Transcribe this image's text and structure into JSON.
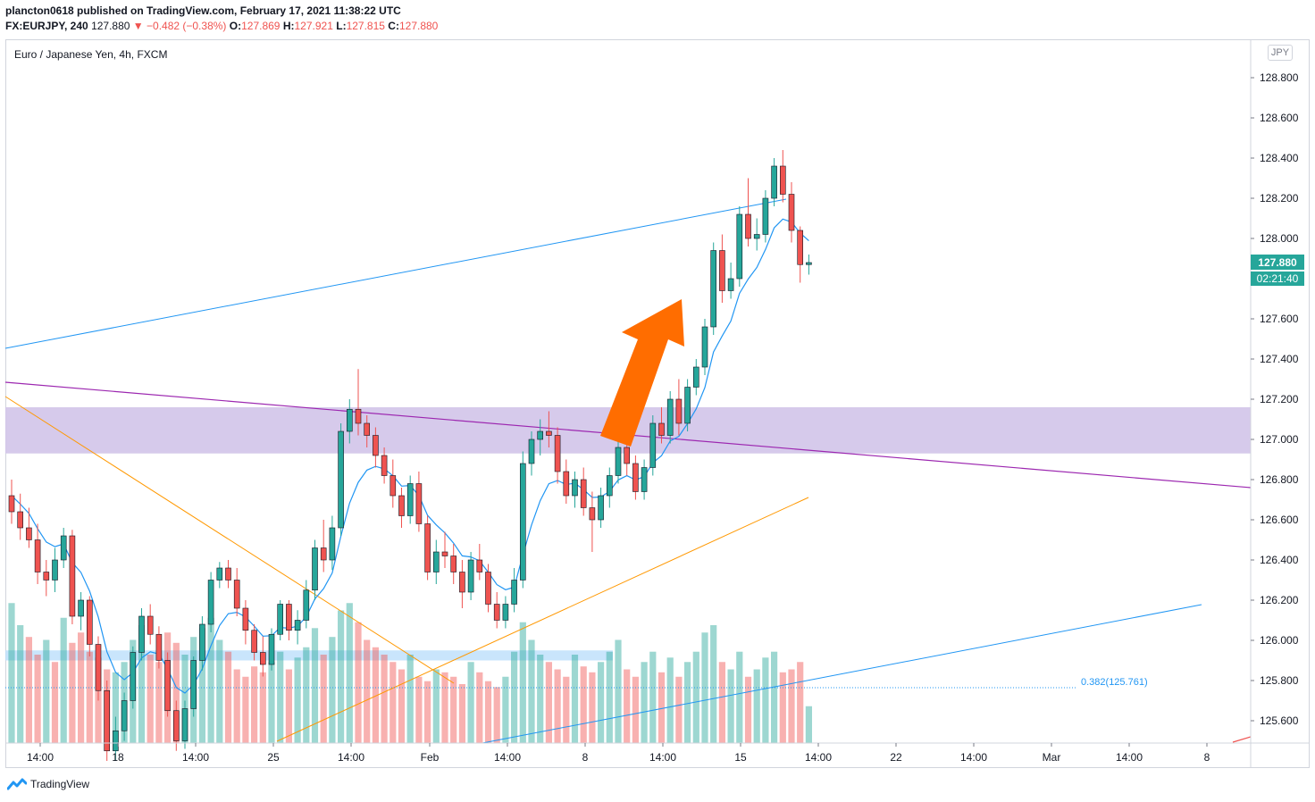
{
  "header": {
    "publisher_line": "plancton0618 published on TradingView.com, February 17, 2021 11:38:22 UTC",
    "symbol": "FX:EURJPY, 240",
    "last": "127.880",
    "change": "▼ −0.482 (−0.38%)",
    "o_label": "O:",
    "o": "127.869",
    "h_label": "H:",
    "h": "127.921",
    "l_label": "L:",
    "l": "127.815",
    "c_label": "C:",
    "c": "127.880"
  },
  "chart_title": "Euro / Japanese Yen, 4h, FXCM",
  "currency_button": "JPY",
  "footer": {
    "brand": "TradingView"
  },
  "colors": {
    "up": "#26a69a",
    "down": "#ef5350",
    "ema": "#2196f3",
    "zone": "#d1c4e9",
    "arrow": "#ff6d00"
  },
  "chart_data": {
    "type": "candlestick",
    "yaxis": {
      "ticks": [
        "125.600",
        "125.800",
        "126.000",
        "126.200",
        "126.400",
        "126.600",
        "126.800",
        "127.000",
        "127.200",
        "127.400",
        "127.600",
        "127.800",
        "128.000",
        "128.200",
        "128.400",
        "128.600",
        "128.800"
      ],
      "ylim": [
        125.47,
        128.99
      ]
    },
    "xaxis": {
      "ticks": [
        "14:00",
        "18",
        "14:00",
        "25",
        "14:00",
        "Feb",
        "14:00",
        "8",
        "14:00",
        "15",
        "14:00",
        "22",
        "14:00",
        "Mar",
        "14:00",
        "8"
      ]
    },
    "price_label": "127.880",
    "countdown": "02:21:40",
    "fib_label": "0.382(125.761)",
    "candles": [
      [
        126.72,
        126.8,
        126.58,
        126.64
      ],
      [
        126.64,
        126.73,
        126.5,
        126.56
      ],
      [
        126.56,
        126.66,
        126.46,
        126.5
      ],
      [
        126.5,
        126.58,
        126.28,
        126.34
      ],
      [
        126.34,
        126.4,
        126.22,
        126.3
      ],
      [
        126.3,
        126.46,
        126.24,
        126.4
      ],
      [
        126.4,
        126.56,
        126.36,
        126.52
      ],
      [
        126.52,
        126.55,
        126.08,
        126.12
      ],
      [
        126.12,
        126.24,
        126.05,
        126.2
      ],
      [
        126.2,
        126.22,
        125.92,
        125.98
      ],
      [
        125.98,
        126.02,
        125.7,
        125.75
      ],
      [
        125.75,
        125.8,
        125.4,
        125.45
      ],
      [
        125.45,
        125.62,
        125.4,
        125.55
      ],
      [
        125.55,
        125.74,
        125.5,
        125.7
      ],
      [
        125.7,
        125.97,
        125.66,
        125.94
      ],
      [
        125.94,
        126.16,
        125.9,
        126.12
      ],
      [
        126.12,
        126.18,
        125.98,
        126.03
      ],
      [
        126.03,
        126.07,
        125.86,
        125.9
      ],
      [
        125.9,
        125.94,
        125.62,
        125.65
      ],
      [
        125.65,
        125.7,
        125.45,
        125.5
      ],
      [
        125.5,
        125.7,
        125.46,
        125.66
      ],
      [
        125.66,
        125.92,
        125.62,
        125.9
      ],
      [
        125.9,
        126.12,
        125.85,
        126.08
      ],
      [
        126.08,
        126.34,
        126.04,
        126.3
      ],
      [
        126.3,
        126.39,
        126.26,
        126.36
      ],
      [
        126.36,
        126.4,
        126.26,
        126.3
      ],
      [
        126.3,
        126.36,
        126.12,
        126.16
      ],
      [
        126.16,
        126.2,
        125.98,
        126.05
      ],
      [
        126.05,
        126.08,
        125.9,
        125.94
      ],
      [
        125.94,
        126.02,
        125.82,
        125.88
      ],
      [
        125.88,
        126.06,
        125.85,
        126.03
      ],
      [
        126.03,
        126.2,
        126.0,
        126.18
      ],
      [
        126.18,
        126.2,
        126.0,
        126.05
      ],
      [
        126.05,
        126.15,
        125.98,
        126.1
      ],
      [
        126.1,
        126.3,
        126.06,
        126.25
      ],
      [
        126.25,
        126.5,
        126.2,
        126.46
      ],
      [
        126.46,
        126.6,
        126.34,
        126.4
      ],
      [
        126.4,
        126.62,
        126.35,
        126.56
      ],
      [
        126.56,
        127.08,
        126.52,
        127.04
      ],
      [
        127.04,
        127.2,
        126.98,
        127.15
      ],
      [
        127.15,
        127.35,
        127.02,
        127.08
      ],
      [
        127.08,
        127.12,
        126.96,
        127.02
      ],
      [
        127.02,
        127.06,
        126.86,
        126.92
      ],
      [
        126.92,
        126.96,
        126.78,
        126.82
      ],
      [
        126.82,
        126.9,
        126.66,
        126.72
      ],
      [
        126.72,
        126.76,
        126.56,
        126.62
      ],
      [
        126.62,
        126.82,
        126.58,
        126.78
      ],
      [
        126.78,
        126.84,
        126.54,
        126.58
      ],
      [
        126.58,
        126.62,
        126.3,
        126.34
      ],
      [
        126.34,
        126.5,
        126.28,
        126.44
      ],
      [
        126.44,
        126.54,
        126.36,
        126.42
      ],
      [
        126.42,
        126.48,
        126.28,
        126.34
      ],
      [
        126.34,
        126.4,
        126.16,
        126.24
      ],
      [
        126.24,
        126.44,
        126.2,
        126.4
      ],
      [
        126.4,
        126.48,
        126.3,
        126.34
      ],
      [
        126.34,
        126.38,
        126.14,
        126.18
      ],
      [
        126.18,
        126.24,
        126.06,
        126.1
      ],
      [
        126.1,
        126.22,
        126.06,
        126.18
      ],
      [
        126.18,
        126.36,
        126.14,
        126.3
      ],
      [
        126.3,
        126.94,
        126.26,
        126.88
      ],
      [
        126.88,
        127.04,
        126.82,
        127.0
      ],
      [
        127.0,
        127.1,
        126.92,
        127.04
      ],
      [
        127.04,
        127.14,
        126.96,
        127.02
      ],
      [
        127.02,
        127.06,
        126.78,
        126.84
      ],
      [
        126.84,
        126.9,
        126.68,
        126.72
      ],
      [
        126.72,
        126.84,
        126.66,
        126.8
      ],
      [
        126.8,
        126.86,
        126.62,
        126.66
      ],
      [
        126.66,
        126.74,
        126.44,
        126.6
      ],
      [
        126.6,
        126.76,
        126.56,
        126.72
      ],
      [
        126.72,
        126.86,
        126.66,
        126.82
      ],
      [
        126.82,
        127.0,
        126.78,
        126.96
      ],
      [
        126.96,
        127.06,
        126.82,
        126.88
      ],
      [
        126.88,
        126.92,
        126.7,
        126.74
      ],
      [
        126.74,
        126.9,
        126.7,
        126.86
      ],
      [
        126.86,
        127.12,
        126.82,
        127.08
      ],
      [
        127.08,
        127.16,
        126.98,
        127.02
      ],
      [
        127.02,
        127.24,
        126.98,
        127.2
      ],
      [
        127.2,
        127.3,
        127.02,
        127.08
      ],
      [
        127.08,
        127.3,
        127.04,
        127.26
      ],
      [
        127.26,
        127.4,
        127.22,
        127.36
      ],
      [
        127.36,
        127.6,
        127.32,
        127.56
      ],
      [
        127.56,
        127.98,
        127.52,
        127.94
      ],
      [
        127.94,
        128.02,
        127.68,
        127.74
      ],
      [
        127.74,
        127.88,
        127.7,
        127.8
      ],
      [
        127.8,
        128.16,
        127.76,
        128.12
      ],
      [
        128.12,
        128.3,
        127.96,
        128.0
      ],
      [
        128.0,
        128.1,
        127.94,
        128.02
      ],
      [
        128.02,
        128.24,
        127.98,
        128.2
      ],
      [
        128.2,
        128.4,
        128.16,
        128.36
      ],
      [
        128.36,
        128.44,
        128.18,
        128.22
      ],
      [
        128.22,
        128.28,
        127.98,
        128.04
      ],
      [
        128.04,
        128.06,
        127.78,
        127.87
      ],
      [
        127.87,
        127.92,
        127.82,
        127.88
      ]
    ],
    "volume_up": [
      true,
      true,
      false,
      false,
      true,
      false,
      true,
      false,
      false,
      false,
      false,
      false,
      true,
      true,
      true,
      true,
      false,
      false,
      false,
      false,
      true,
      true,
      true,
      true,
      true,
      false,
      false,
      false,
      false,
      false,
      true,
      true,
      false,
      true,
      true,
      true,
      false,
      true,
      true,
      true,
      false,
      false,
      false,
      false,
      false,
      false,
      true,
      false,
      false,
      true,
      false,
      false,
      false,
      true,
      false,
      false,
      false,
      true,
      true,
      true,
      true,
      true,
      false,
      false,
      false,
      true,
      false,
      false,
      true,
      true,
      true,
      false,
      false,
      true,
      true,
      false,
      true,
      false,
      true,
      true,
      true,
      true,
      false,
      true,
      true,
      false,
      true,
      true,
      true,
      false,
      false,
      false,
      true
    ],
    "volume": [
      0.95,
      0.8,
      0.72,
      0.6,
      0.7,
      0.55,
      0.85,
      0.68,
      0.75,
      0.62,
      0.58,
      0.5,
      0.48,
      0.55,
      0.7,
      0.8,
      0.6,
      0.55,
      0.75,
      0.68,
      0.6,
      0.72,
      0.78,
      0.85,
      0.7,
      0.62,
      0.5,
      0.45,
      0.52,
      0.48,
      0.55,
      0.62,
      0.5,
      0.58,
      0.65,
      0.78,
      0.6,
      0.72,
      0.9,
      0.95,
      0.82,
      0.7,
      0.65,
      0.6,
      0.55,
      0.5,
      0.6,
      0.45,
      0.42,
      0.5,
      0.48,
      0.45,
      0.4,
      0.55,
      0.48,
      0.42,
      0.38,
      0.45,
      0.62,
      0.82,
      0.7,
      0.6,
      0.55,
      0.5,
      0.45,
      0.6,
      0.52,
      0.48,
      0.55,
      0.62,
      0.7,
      0.5,
      0.45,
      0.55,
      0.62,
      0.48,
      0.58,
      0.45,
      0.55,
      0.62,
      0.75,
      0.8,
      0.55,
      0.5,
      0.62,
      0.45,
      0.5,
      0.58,
      0.62,
      0.48,
      0.5,
      0.55,
      0.25
    ]
  }
}
